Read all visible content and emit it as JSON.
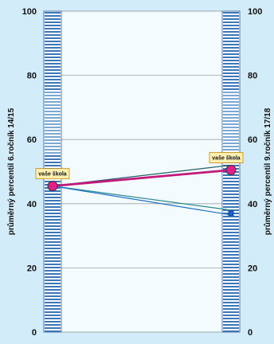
{
  "chart_data": {
    "type": "line",
    "ylim": [
      0,
      100
    ],
    "yticks": [
      "0",
      "20",
      "40",
      "60",
      "80",
      "100"
    ],
    "ylabel_left": "průměrný percentil 6.ročník 14/15",
    "ylabel_right": "průměrný percentil 9.ročník 17/18",
    "grid": true,
    "x": [
      "6.ročník 14/15",
      "9.ročník 17/18"
    ],
    "series": [
      {
        "values": [
          45.5,
          52.0
        ],
        "color": "#1f5f6b",
        "width": 1.2
      },
      {
        "values": [
          45.5,
          50.5
        ],
        "color": "#c2187a",
        "width": 2.8
      },
      {
        "values": [
          45.5,
          38.0
        ],
        "color": "#2a8a8f",
        "width": 1.2
      },
      {
        "values": [
          45.5,
          36.5
        ],
        "color": "#1b6fc4",
        "width": 1.2
      }
    ],
    "markers": [
      {
        "x_index": 0,
        "value": 45.5,
        "shape": "circle",
        "color": "#e0208a"
      },
      {
        "x_index": 1,
        "value": 50.5,
        "shape": "circle",
        "color": "#e0208a"
      },
      {
        "x_index": 1,
        "value": 37.0,
        "shape": "square",
        "color": "#1b5fd0"
      }
    ],
    "annotations": [
      {
        "text": "vaše škola",
        "x_index": 0,
        "value": 45.5
      },
      {
        "text": "vaše škola",
        "x_index": 1,
        "value": 50.5
      }
    ],
    "colors": {
      "background": "#d2ecfa",
      "plot_area": "#f4fbff",
      "bar_stripe_dark": "#3c76b8",
      "bar_stripe_light": "#ffffff",
      "tag_fill": "#fff0b0",
      "tag_border": "#c88a10"
    }
  }
}
